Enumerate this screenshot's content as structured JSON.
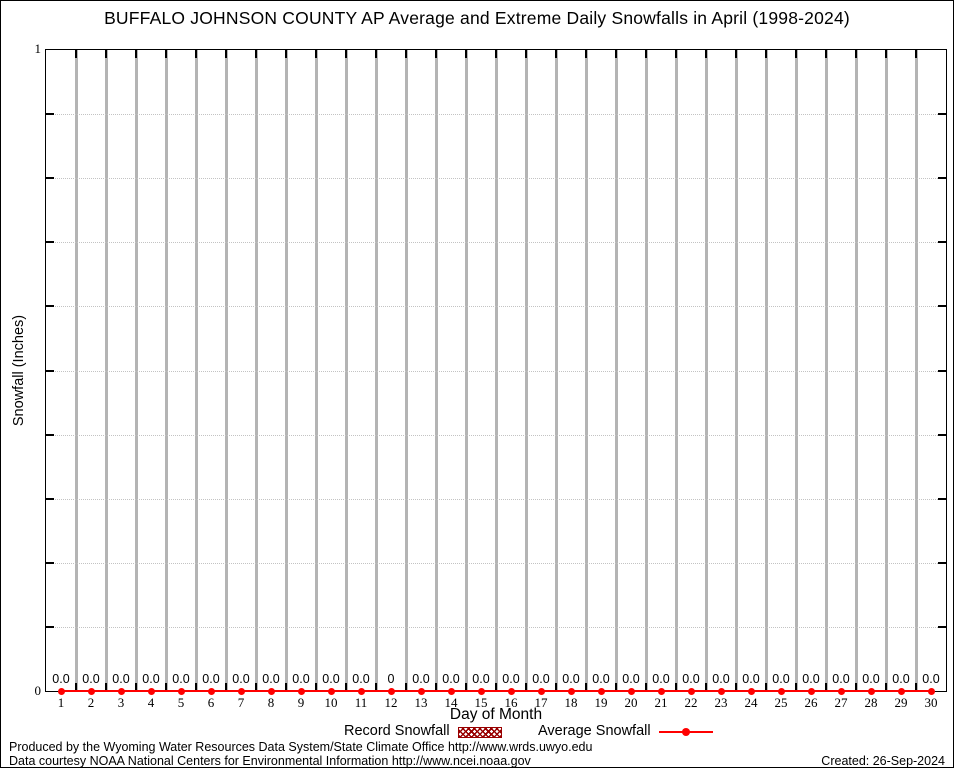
{
  "title": "BUFFALO JOHNSON COUNTY AP Average and Extreme Daily Snowfalls in April (1998-2024)",
  "y_axis": {
    "label": "Snowfall (Inches)",
    "top_tick": "1",
    "bottom_tick": "0"
  },
  "x_axis": {
    "label": "Day of Month"
  },
  "legend": {
    "record_label": "Record Snowfall",
    "average_label": "Average Snowfall"
  },
  "footer": {
    "line1": "Produced by the Wyoming Water Resources Data System/State Climate Office http://www.wrds.uwyo.edu",
    "line2": "Data courtesy NOAA National Centers for Environmental Information http://www.ncei.noaa.gov",
    "created": "Created: 26-Sep-2024"
  },
  "colors": {
    "average_series": "#ff0000",
    "record_series": "#990000",
    "grid_vertical": "#b4b4b4",
    "grid_horizontal_dotted": "#c3c3c3",
    "axis": "#000000"
  },
  "chart_data": {
    "type": "line",
    "title": "BUFFALO JOHNSON COUNTY AP Average and Extreme Daily Snowfalls in April (1998-2024)",
    "xlabel": "Day of Month",
    "ylabel": "Snowfall (Inches)",
    "ylim": [
      0,
      1
    ],
    "y_tick_labels_shown": [
      "0",
      "1"
    ],
    "y_minor_tick_interval": 0.1,
    "grid": true,
    "legend_position": "bottom",
    "x": [
      1,
      2,
      3,
      4,
      5,
      6,
      7,
      8,
      9,
      10,
      11,
      12,
      13,
      14,
      15,
      16,
      17,
      18,
      19,
      20,
      21,
      22,
      23,
      24,
      25,
      26,
      27,
      28,
      29,
      30
    ],
    "series": [
      {
        "name": "Record Snowfall",
        "style": "bars-hatched",
        "values": [
          0,
          0,
          0,
          0,
          0,
          0,
          0,
          0,
          0,
          0,
          0,
          0,
          0,
          0,
          0,
          0,
          0,
          0,
          0,
          0,
          0,
          0,
          0,
          0,
          0,
          0,
          0,
          0,
          0,
          0
        ]
      },
      {
        "name": "Average Snowfall",
        "style": "line-with-points",
        "values": [
          0,
          0,
          0,
          0,
          0,
          0,
          0,
          0,
          0,
          0,
          0,
          0,
          0,
          0,
          0,
          0,
          0,
          0,
          0,
          0,
          0,
          0,
          0,
          0,
          0,
          0,
          0,
          0,
          0,
          0
        ]
      }
    ],
    "point_labels": [
      "0.0",
      "0.0",
      "0.0",
      "0.0",
      "0.0",
      "0.0",
      "0.0",
      "0.0",
      "0.0",
      "0.0",
      "0.0",
      "0",
      "0.0",
      "0.0",
      "0.0",
      "0.0",
      "0.0",
      "0.0",
      "0.0",
      "0.0",
      "0.0",
      "0.0",
      "0.0",
      "0.0",
      "0.0",
      "0.0",
      "0.0",
      "0.0",
      "0.0",
      "0.0"
    ]
  }
}
